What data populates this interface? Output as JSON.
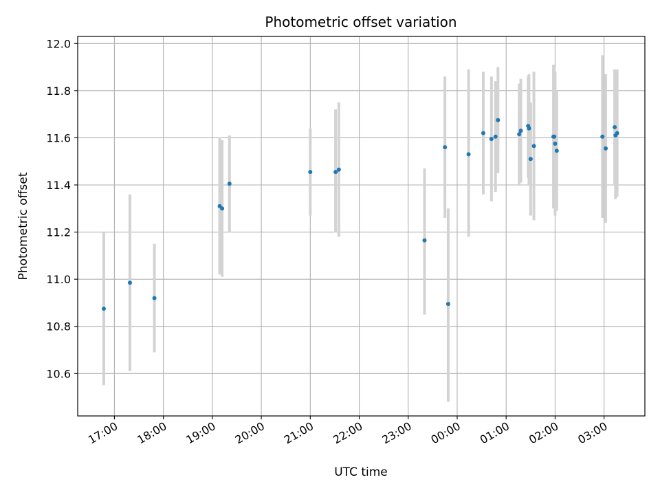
{
  "chart_data": {
    "type": "scatter",
    "title": "Photometric offset variation",
    "xlabel": "UTC time",
    "ylabel": "Photometric offset",
    "x_unit": "hours UTC (times after midnight shown as 24+h)",
    "xlim": [
      "16:15",
      "03:50"
    ],
    "ylim": [
      10.42,
      12.03
    ],
    "yticks": [
      10.6,
      10.8,
      11.0,
      11.2,
      11.4,
      11.6,
      11.8,
      12.0
    ],
    "xticks": [
      "17:00",
      "18:00",
      "19:00",
      "20:00",
      "21:00",
      "22:00",
      "23:00",
      "00:00",
      "01:00",
      "02:00",
      "03:00"
    ],
    "grid": true,
    "marker_color": "#1f77b4",
    "errorbar_color": "#d3d3d3",
    "points": [
      {
        "t": "16:47",
        "y": 10.875,
        "lo": 10.55,
        "hi": 11.2
      },
      {
        "t": "17:19",
        "y": 10.985,
        "lo": 10.61,
        "hi": 11.36
      },
      {
        "t": "17:49",
        "y": 10.92,
        "lo": 10.69,
        "hi": 11.15
      },
      {
        "t": "19:09",
        "y": 11.31,
        "lo": 11.02,
        "hi": 11.6
      },
      {
        "t": "19:12",
        "y": 11.3,
        "lo": 11.01,
        "hi": 11.59
      },
      {
        "t": "19:21",
        "y": 11.405,
        "lo": 11.2,
        "hi": 11.61
      },
      {
        "t": "21:00",
        "y": 11.455,
        "lo": 11.27,
        "hi": 11.64
      },
      {
        "t": "21:31",
        "y": 11.455,
        "lo": 11.2,
        "hi": 11.72
      },
      {
        "t": "21:35",
        "y": 11.465,
        "lo": 11.18,
        "hi": 11.75
      },
      {
        "t": "23:20",
        "y": 11.165,
        "lo": 10.85,
        "hi": 11.47
      },
      {
        "t": "23:45",
        "y": 11.56,
        "lo": 11.26,
        "hi": 11.86
      },
      {
        "t": "23:49",
        "y": 10.895,
        "lo": 10.48,
        "hi": 11.3
      },
      {
        "t": "24:14",
        "y": 11.53,
        "lo": 11.18,
        "hi": 11.89
      },
      {
        "t": "24:32",
        "y": 11.62,
        "lo": 11.36,
        "hi": 11.88
      },
      {
        "t": "24:42",
        "y": 11.595,
        "lo": 11.33,
        "hi": 11.86
      },
      {
        "t": "24:47",
        "y": 11.605,
        "lo": 11.37,
        "hi": 11.84
      },
      {
        "t": "24:50",
        "y": 11.675,
        "lo": 11.45,
        "hi": 11.9
      },
      {
        "t": "25:16",
        "y": 11.615,
        "lo": 11.4,
        "hi": 11.83
      },
      {
        "t": "25:18",
        "y": 11.63,
        "lo": 11.41,
        "hi": 11.85
      },
      {
        "t": "25:27",
        "y": 11.65,
        "lo": 11.43,
        "hi": 11.86
      },
      {
        "t": "25:28",
        "y": 11.64,
        "lo": 11.4,
        "hi": 11.87
      },
      {
        "t": "25:30",
        "y": 11.51,
        "lo": 11.27,
        "hi": 11.75
      },
      {
        "t": "25:34",
        "y": 11.565,
        "lo": 11.25,
        "hi": 11.88
      },
      {
        "t": "25:58",
        "y": 11.605,
        "lo": 11.3,
        "hi": 11.91
      },
      {
        "t": "25:59",
        "y": 11.605,
        "lo": 11.31,
        "hi": 11.9
      },
      {
        "t": "26:00",
        "y": 11.575,
        "lo": 11.27,
        "hi": 11.88
      },
      {
        "t": "26:02",
        "y": 11.545,
        "lo": 11.29,
        "hi": 11.8
      },
      {
        "t": "26:58",
        "y": 11.605,
        "lo": 11.26,
        "hi": 11.95
      },
      {
        "t": "27:02",
        "y": 11.555,
        "lo": 11.24,
        "hi": 11.87
      },
      {
        "t": "27:13",
        "y": 11.645,
        "lo": 11.4,
        "hi": 11.89
      },
      {
        "t": "27:14",
        "y": 11.61,
        "lo": 11.34,
        "hi": 11.88
      },
      {
        "t": "27:16",
        "y": 11.62,
        "lo": 11.35,
        "hi": 11.89
      }
    ]
  }
}
